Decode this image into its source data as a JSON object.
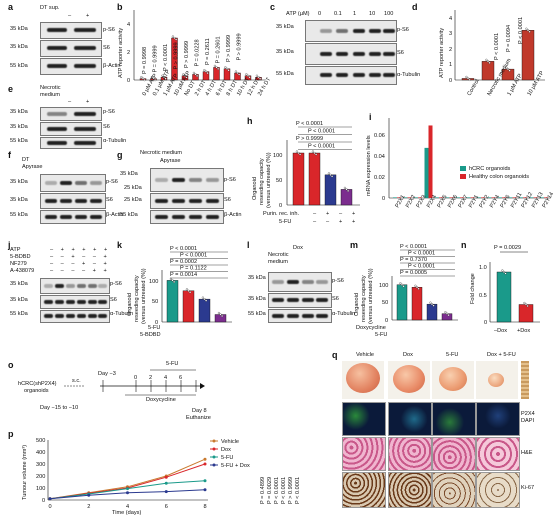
{
  "panels": {
    "a": "a",
    "b": "b",
    "c": "c",
    "d": "d",
    "e": "e",
    "f": "f",
    "g": "g",
    "h": "h",
    "i": "i",
    "j": "j",
    "k": "k",
    "l": "l",
    "m": "m",
    "n": "n",
    "o": "o",
    "p": "p",
    "q": "q"
  },
  "common": {
    "kda35": "35 kDa",
    "kda55": "55 kDa",
    "kda25": "25 kDa",
    "kda35b": "35 kDa",
    "kda": "kDa",
    "pS6": "p-S6",
    "S6": "S6",
    "actin": "β-Actin",
    "tubulin": "α-Tubulin",
    "minus": "–",
    "plus": "+"
  },
  "a": {
    "treatment": "DT sup."
  },
  "b": {
    "ylabel": "ATP reporter activity",
    "pvals": [
      "P = 0.9998",
      "P = 0.9999",
      "P < 0.0001",
      "P > 0.9999",
      "P > 0.9999",
      "P = 0.0228",
      "P = 0.2611",
      "P = 0.2601",
      "P > 0.9999",
      "P > 0.9999"
    ],
    "cats": [
      "0 µM ATP",
      "0.1 µM ATP",
      "1 µM ATP",
      "10 µM ATP",
      "No DT",
      "2 h DT",
      "4 h DT",
      "6 h DT",
      "8 h DT",
      "10 h DT",
      "12 h DT",
      "24 h DT"
    ],
    "ticks": [
      "0",
      "2",
      "4"
    ]
  },
  "c": {
    "treatment": "ATP (µM)",
    "doses": [
      "0",
      "0.1",
      "1",
      "10",
      "100"
    ]
  },
  "d": {
    "ylabel": "ATP reporter activity",
    "pvals": [
      "P < 0.0001",
      "P = 0.0094",
      "P < 0.0001"
    ],
    "cats": [
      "Control",
      "Necrotic medium",
      "1 µM ATP",
      "10 µM ATP"
    ],
    "ticks": [
      "0",
      "1",
      "2",
      "3",
      "4"
    ]
  },
  "e": {
    "treatment1": "Necrotic",
    "treatment2": "medium"
  },
  "f": {
    "row1": "DT",
    "row2": "Apyrase"
  },
  "g": {
    "row1": "Necrotic medium",
    "row2": "Apyrase"
  },
  "h": {
    "ylabel1": "Organoid",
    "ylabel2": "reseeding capacity",
    "ylabel3": "(versus untreated (%))",
    "pvals": [
      "P < 0.0001",
      "P < 0.0001",
      "P > 0.9999",
      "P < 0.0001"
    ],
    "row1": "Purin. rec. inh.",
    "row2": "5-FU",
    "ticks": [
      "0",
      "50",
      "100"
    ]
  },
  "i": {
    "ylabel": "mRNA expression levels",
    "legend1": "hCRC organoids",
    "legend2": "Healthy colon organoids",
    "genes": [
      "P2X1",
      "P2X2",
      "P2X3",
      "P2X4",
      "P2X5",
      "P2X6",
      "P2X7",
      "P2Y1",
      "P2Y2",
      "P2Y4",
      "P2Y6",
      "P2Y11",
      "P2Y12",
      "P2Y13",
      "P2Y14"
    ],
    "ticks": [
      "0",
      "0.02",
      "0.04",
      "0.06"
    ]
  },
  "j": {
    "rows": [
      "ATP",
      "5-BDBD",
      "NF279",
      "A-438079"
    ]
  },
  "k": {
    "pvals": [
      "P < 0.0001",
      "P < 0.0001",
      "P = 0.0002",
      "P = 0.1122",
      "P = 0.0014"
    ],
    "row1": "5-FU",
    "row2": "5-BDBD"
  },
  "l": {
    "row1": "Dox",
    "row2": "Necrotic",
    "row3": "medium"
  },
  "m": {
    "pvals": [
      "P < 0.0001",
      "P < 0.0001",
      "P = 0.7370",
      "P < 0.0001",
      "P = 0.0005"
    ],
    "row1": "Doxycycline",
    "row2": "5-FU"
  },
  "n": {
    "ylabel": "Fold change",
    "pval": "P = 0.0029",
    "cats": [
      "–Dox",
      "+Dox"
    ],
    "ticks": [
      "0",
      "0.5",
      "1.0"
    ]
  },
  "o": {
    "model1": "hCRC(shP2X4)",
    "model2": "organoids",
    "sc": "s.c.",
    "day1": "Day −3",
    "day2": "Day −15 to −10",
    "days": [
      "0",
      "2",
      "4",
      "6"
    ],
    "dox": "Doxycycline",
    "fu": "5-FU",
    "end1": "Day 8",
    "end2": "Euthanize"
  },
  "p": {
    "ylabel": "Tumour volume (mm³)",
    "xlabel": "Time (days)",
    "legend": [
      "Vehicle",
      "Dox",
      "5-FU",
      "5-FU + Dox"
    ],
    "pvals": [
      "P = 0.4899",
      "P = 0.0029",
      "P < 0.0001",
      "P < 0.0001",
      "P > 0.9999",
      "P < 0.0001"
    ],
    "xticks": [
      "0",
      "2",
      "4",
      "6",
      "8"
    ],
    "yticks": [
      "0",
      "100",
      "200",
      "300",
      "400",
      "500"
    ]
  },
  "q": {
    "cols": [
      "Vehicle",
      "Dox",
      "5-FU",
      "Dox + 5-FU"
    ],
    "rows": [
      "P2X4",
      "DAPI",
      "H&E",
      "Ki-67"
    ]
  },
  "colors": {
    "teal": "#1a9a8a",
    "red": "#d9262a",
    "blue": "#2b3a8f",
    "purple": "#7b2d8e",
    "orange": "#c97a2e"
  },
  "chart_data": [
    {
      "type": "bar",
      "panel": "b",
      "categories": [
        "0 µM ATP",
        "0.1 µM ATP",
        "1 µM ATP",
        "10 µM ATP",
        "No DT",
        "2 h DT",
        "4 h DT",
        "6 h DT",
        "8 h DT",
        "10 h DT",
        "12 h DT",
        "24 h DT"
      ],
      "values": [
        0.1,
        0.1,
        0.2,
        3.0,
        0.3,
        0.4,
        0.6,
        0.9,
        0.8,
        0.5,
        0.3,
        0.2
      ],
      "ylabel": "ATP reporter activity",
      "ylim": [
        0,
        5
      ]
    },
    {
      "type": "bar",
      "panel": "d",
      "categories": [
        "Control",
        "Necrotic medium",
        "1 µM ATP",
        "10 µM ATP"
      ],
      "values": [
        0.1,
        1.2,
        0.7,
        3.2
      ],
      "ylabel": "ATP reporter activity",
      "ylim": [
        0,
        4.5
      ]
    },
    {
      "type": "bar",
      "panel": "h",
      "categories": [
        "untreated",
        "Purin. rec. inh.",
        "5-FU",
        "Purin. rec. inh. + 5-FU"
      ],
      "values": [
        100,
        100,
        58,
        30
      ],
      "ylim": [
        0,
        125
      ]
    },
    {
      "type": "bar",
      "panel": "i",
      "categories": [
        "P2X1",
        "P2X2",
        "P2X3",
        "P2X4",
        "P2X5",
        "P2X6",
        "P2X7",
        "P2Y1",
        "P2Y2",
        "P2Y4",
        "P2Y6",
        "P2Y11",
        "P2Y12",
        "P2Y13",
        "P2Y14"
      ],
      "series": [
        {
          "name": "hCRC organoids",
          "values": [
            0.0005,
            0.0004,
            0.0003,
            0.047,
            0.0004,
            0.0003,
            0.0004,
            0.0005,
            0.0003,
            0.0002,
            0.0003,
            0.0003,
            0.0002,
            0.0002,
            0.0002
          ]
        },
        {
          "name": "Healthy colon organoids",
          "values": [
            0.0004,
            0.0003,
            0.0002,
            0.068,
            0.0003,
            0.0002,
            0.0003,
            0.0004,
            0.0002,
            0.0002,
            0.0002,
            0.0002,
            0.0001,
            0.0001,
            0.0001
          ]
        }
      ],
      "ylabel": "mRNA expression levels",
      "ylim": [
        0,
        0.075
      ]
    },
    {
      "type": "bar",
      "panel": "k",
      "categories": [
        "untreated",
        "5-BDBD",
        "5-FU",
        "5-FU + 5-BDBD"
      ],
      "values": [
        100,
        75,
        55,
        18
      ],
      "ylim": [
        0,
        125
      ]
    },
    {
      "type": "bar",
      "panel": "m",
      "categories": [
        "untreated",
        "Doxycycline",
        "5-FU",
        "Doxycycline + 5-FU"
      ],
      "values": [
        100,
        93,
        45,
        18
      ],
      "ylim": [
        0,
        125
      ]
    },
    {
      "type": "bar",
      "panel": "n",
      "categories": [
        "–Dox",
        "+Dox"
      ],
      "values": [
        1.0,
        0.35
      ],
      "ylabel": "Fold change",
      "ylim": [
        0,
        1.1
      ]
    },
    {
      "type": "line",
      "panel": "p",
      "x": [
        0,
        2,
        4,
        6,
        8
      ],
      "series": [
        {
          "name": "Vehicle",
          "values": [
            10,
            60,
            110,
            200,
            340
          ]
        },
        {
          "name": "Dox",
          "values": [
            10,
            55,
            100,
            190,
            300
          ]
        },
        {
          "name": "5-FU",
          "values": [
            10,
            50,
            95,
            140,
            160
          ]
        },
        {
          "name": "5-FU + Dox",
          "values": [
            10,
            40,
            60,
            70,
            85
          ]
        }
      ],
      "xlabel": "Time (days)",
      "ylabel": "Tumour volume (mm³)",
      "ylim": [
        0,
        500
      ]
    }
  ]
}
